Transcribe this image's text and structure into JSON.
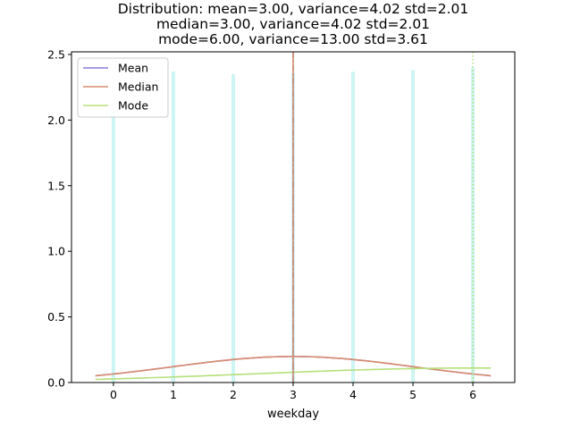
{
  "chart_data": {
    "type": "bar",
    "title_lines": [
      "Distribution: mean=3.00, variance=4.02 std=2.01",
      "median=3.00, variance=4.02 std=2.01",
      "mode=6.00, variance=13.00 std=3.61"
    ],
    "xlabel": "weekday",
    "ylabel": "",
    "xlim": [
      -0.7,
      6.7
    ],
    "ylim": [
      0,
      2.52
    ],
    "x_ticks": [
      0,
      1,
      2,
      3,
      4,
      5,
      6
    ],
    "y_ticks": [
      0.0,
      0.5,
      1.0,
      1.5,
      2.0,
      2.5
    ],
    "x_tick_labels": [
      "0",
      "1",
      "2",
      "3",
      "4",
      "5",
      "6"
    ],
    "y_tick_labels": [
      "0.0",
      "0.5",
      "1.0",
      "1.5",
      "2.0",
      "2.5"
    ],
    "bars": {
      "color": "#ccf5f3",
      "x": [
        0,
        1,
        2,
        3,
        4,
        5,
        6
      ],
      "values": [
        2.08,
        2.37,
        2.35,
        2.36,
        2.37,
        2.38,
        2.4
      ]
    },
    "series": [
      {
        "name": "Mean",
        "color": "#8c7bd6",
        "type": "normal",
        "mu": 3.0,
        "sigma": 2.01,
        "vline": 3.0,
        "dash": "dashdot"
      },
      {
        "name": "Median",
        "color": "#d98c6f",
        "type": "normal",
        "mu": 3.0,
        "sigma": 2.01,
        "vline": 3.0,
        "dash": "solid"
      },
      {
        "name": "Mode",
        "color": "#b5e07a",
        "type": "normal",
        "mu": 6.0,
        "sigma": 3.61,
        "vline": 6.0,
        "dash": "dotted"
      }
    ],
    "curve_x_range": [
      -0.3,
      6.3
    ],
    "grid": false,
    "legend_position": "top-left"
  }
}
